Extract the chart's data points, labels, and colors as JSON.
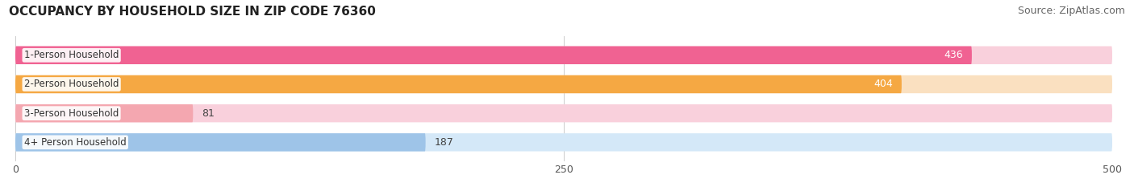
{
  "title": "OCCUPANCY BY HOUSEHOLD SIZE IN ZIP CODE 76360",
  "source": "Source: ZipAtlas.com",
  "categories": [
    "1-Person Household",
    "2-Person Household",
    "3-Person Household",
    "4+ Person Household"
  ],
  "values": [
    436,
    404,
    81,
    187
  ],
  "bar_colors": [
    "#F06292",
    "#F5A843",
    "#F4A7B0",
    "#9EC4E8"
  ],
  "bar_bg_colors": [
    "#F9D0DC",
    "#FAE0C0",
    "#F9D0DC",
    "#D4E8F8"
  ],
  "value_label_colors": [
    "white",
    "white",
    "#555555",
    "#555555"
  ],
  "xlim": [
    0,
    500
  ],
  "xticks": [
    0,
    250,
    500
  ],
  "title_fontsize": 11,
  "source_fontsize": 9,
  "tick_fontsize": 9,
  "bar_label_fontsize": 9,
  "category_fontsize": 8.5,
  "background_color": "#FFFFFF",
  "bar_height": 0.62,
  "figsize": [
    14.06,
    2.33
  ],
  "dpi": 100
}
